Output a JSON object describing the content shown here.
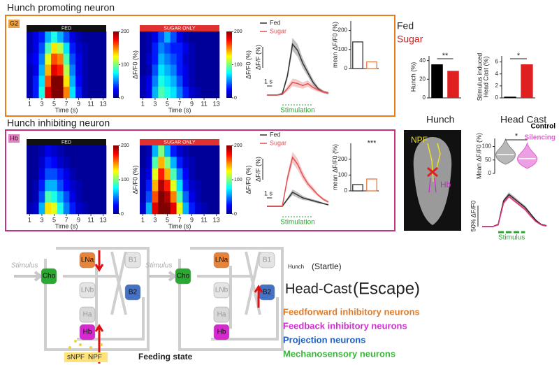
{
  "figure": {
    "titles": [
      "Hunch promoting neuron",
      "Hunch inhibiting neuron"
    ],
    "tags": [
      "G2",
      "Hb"
    ],
    "legend_right": [
      "Fed",
      "Sugar"
    ],
    "image_labels": [
      "Hunch",
      "Head Cast"
    ],
    "brain_labels": [
      "NPF",
      "Hb"
    ]
  },
  "chart_data": [
    {
      "type": "heatmap",
      "title": "FED",
      "header_color": "#111111",
      "x": [
        1,
        2,
        3,
        4,
        5,
        6,
        7,
        8,
        9,
        10,
        11,
        12,
        13
      ],
      "xlim": [
        0.5,
        13.5
      ],
      "xticks": [
        1,
        3,
        5,
        7,
        9,
        11,
        13
      ],
      "xlabel": "Time (s)",
      "zlim": [
        0,
        200
      ],
      "zticks": [
        0,
        100,
        200
      ],
      "zlabel": "ΔF/F0 (%)",
      "values": [
        [
          10,
          20,
          30,
          60,
          80,
          60,
          40,
          20,
          10,
          5,
          5,
          5,
          5
        ],
        [
          10,
          20,
          40,
          90,
          130,
          110,
          70,
          30,
          15,
          10,
          5,
          5,
          5
        ],
        [
          15,
          25,
          50,
          120,
          160,
          150,
          90,
          40,
          20,
          10,
          5,
          5,
          5
        ],
        [
          10,
          20,
          60,
          140,
          180,
          170,
          110,
          50,
          20,
          10,
          5,
          5,
          5
        ],
        [
          10,
          30,
          70,
          160,
          200,
          200,
          130,
          60,
          25,
          10,
          5,
          5,
          5
        ],
        [
          10,
          30,
          80,
          180,
          200,
          200,
          150,
          70,
          30,
          10,
          5,
          5,
          5
        ]
      ]
    },
    {
      "type": "heatmap",
      "title": "SUGAR ONLY",
      "header_color": "#e03030",
      "x": [
        1,
        2,
        3,
        4,
        5,
        6,
        7,
        8,
        9,
        10,
        11,
        12,
        13
      ],
      "xlim": [
        0.5,
        13.5
      ],
      "xticks": [
        1,
        3,
        5,
        7,
        9,
        11,
        13
      ],
      "xlabel": "Time (s)",
      "zlim": [
        0,
        200
      ],
      "zticks": [
        0,
        100,
        200
      ],
      "zlabel": "ΔF/F0 (%)",
      "values": [
        [
          5,
          10,
          20,
          40,
          60,
          40,
          20,
          10,
          5,
          5,
          5,
          5,
          5
        ],
        [
          5,
          10,
          30,
          50,
          40,
          30,
          30,
          20,
          10,
          5,
          5,
          5,
          5
        ],
        [
          5,
          15,
          30,
          60,
          50,
          40,
          30,
          15,
          10,
          5,
          5,
          5,
          5
        ],
        [
          5,
          10,
          40,
          70,
          60,
          50,
          30,
          20,
          10,
          5,
          5,
          5,
          5
        ],
        [
          10,
          20,
          50,
          80,
          70,
          60,
          40,
          20,
          10,
          5,
          5,
          5,
          5
        ],
        [
          10,
          20,
          60,
          90,
          80,
          70,
          50,
          30,
          15,
          10,
          5,
          5,
          5
        ]
      ]
    },
    {
      "type": "line",
      "legend": true,
      "x": [
        0,
        1,
        2,
        3,
        4,
        5,
        6,
        7,
        8,
        9,
        10,
        11,
        12
      ],
      "xlim": [
        0,
        12
      ],
      "ylim": [
        -10,
        100
      ],
      "ylabel": "ΔF/F (%)",
      "scale_x": "1 s",
      "stim_label": "Stimulation",
      "stim_range": [
        3,
        9
      ],
      "series": [
        {
          "name": "Fed",
          "color": "#333333",
          "values": [
            0,
            0,
            0,
            2,
            30,
            80,
            70,
            50,
            35,
            20,
            10,
            5,
            3
          ],
          "errors": [
            1,
            1,
            1,
            2,
            6,
            10,
            10,
            8,
            6,
            5,
            3,
            2,
            2
          ]
        },
        {
          "name": "Sugar",
          "color": "#e05050",
          "values": [
            0,
            0,
            0,
            1,
            10,
            20,
            18,
            15,
            18,
            12,
            8,
            5,
            3
          ],
          "errors": [
            1,
            1,
            1,
            1,
            4,
            6,
            6,
            5,
            5,
            4,
            3,
            2,
            2
          ]
        }
      ]
    },
    {
      "type": "bar",
      "outline": true,
      "categories": [
        null,
        null
      ],
      "values": [
        140,
        35
      ],
      "colors": [
        "#222222",
        "#e07030"
      ],
      "ylim": [
        0,
        250
      ],
      "yticks": [
        0,
        100,
        200
      ],
      "ylabel": [
        "mean ΔF/F0 (%)"
      ]
    },
    {
      "type": "heatmap",
      "title": "FED",
      "header_color": "#111111",
      "x": [
        1,
        2,
        3,
        4,
        5,
        6,
        7,
        8,
        9,
        10,
        11,
        12,
        13
      ],
      "xlim": [
        0.5,
        13.5
      ],
      "xticks": [
        1,
        3,
        5,
        7,
        9,
        11,
        13
      ],
      "xlabel": "Time (s)",
      "zlim": [
        0,
        200
      ],
      "zticks": [
        0,
        100,
        200
      ],
      "zlabel": "ΔF/F0 (%)",
      "values": [
        [
          5,
          5,
          10,
          20,
          15,
          10,
          5,
          5,
          5,
          5,
          5,
          5,
          5
        ],
        [
          5,
          5,
          15,
          30,
          25,
          15,
          10,
          5,
          5,
          5,
          5,
          5,
          5
        ],
        [
          5,
          5,
          20,
          40,
          40,
          30,
          20,
          10,
          5,
          5,
          5,
          5,
          5
        ],
        [
          5,
          10,
          30,
          60,
          60,
          40,
          25,
          15,
          10,
          5,
          5,
          5,
          5
        ],
        [
          5,
          10,
          40,
          90,
          80,
          60,
          40,
          20,
          10,
          5,
          5,
          5,
          5
        ],
        [
          10,
          15,
          60,
          130,
          120,
          80,
          50,
          30,
          15,
          10,
          5,
          5,
          5
        ]
      ]
    },
    {
      "type": "heatmap",
      "title": "SUGAR ONLY",
      "header_color": "#e03030",
      "x": [
        1,
        2,
        3,
        4,
        5,
        6,
        7,
        8,
        9,
        10,
        11,
        12,
        13
      ],
      "xlim": [
        0.5,
        13.5
      ],
      "xticks": [
        1,
        3,
        5,
        7,
        9,
        11,
        13
      ],
      "xlabel": "Time (s)",
      "zlim": [
        0,
        200
      ],
      "zticks": [
        0,
        100,
        200
      ],
      "zlabel": "ΔF/F0 (%)",
      "values": [
        [
          5,
          10,
          60,
          100,
          60,
          30,
          15,
          10,
          5,
          5,
          5,
          5,
          5
        ],
        [
          5,
          15,
          90,
          140,
          100,
          60,
          30,
          15,
          10,
          5,
          5,
          5,
          5
        ],
        [
          10,
          20,
          120,
          170,
          140,
          90,
          50,
          25,
          10,
          5,
          5,
          5,
          5
        ],
        [
          10,
          30,
          140,
          190,
          170,
          120,
          70,
          30,
          15,
          10,
          5,
          5,
          5
        ],
        [
          10,
          40,
          160,
          200,
          190,
          150,
          90,
          45,
          20,
          10,
          5,
          5,
          5
        ],
        [
          15,
          60,
          180,
          200,
          200,
          180,
          120,
          60,
          30,
          15,
          10,
          5,
          5
        ]
      ]
    },
    {
      "type": "line",
      "legend": true,
      "x": [
        0,
        1,
        2,
        3,
        4,
        5,
        6,
        7,
        8,
        9,
        10,
        11,
        12
      ],
      "xlim": [
        0,
        12
      ],
      "ylim": [
        -5,
        45
      ],
      "ylabel": "ΔF/F (%)",
      "scale_x": "1 s",
      "stim_label": "Stimulation",
      "stim_range": [
        3,
        9
      ],
      "series": [
        {
          "name": "Fed",
          "color": "#333333",
          "values": [
            0,
            0,
            0,
            0,
            5,
            10,
            8,
            6,
            5,
            4,
            3,
            2,
            1
          ],
          "errors": [
            0.5,
            0.5,
            0.5,
            0.5,
            1,
            2,
            2,
            1.5,
            1,
            1,
            1,
            0.5,
            0.5
          ]
        },
        {
          "name": "Sugar",
          "color": "#e05050",
          "values": [
            0,
            0,
            0,
            0,
            20,
            35,
            30,
            22,
            16,
            12,
            8,
            5,
            3
          ],
          "errors": [
            0.5,
            0.5,
            0.5,
            0.5,
            3,
            4,
            4,
            3,
            2,
            2,
            1,
            1,
            1
          ]
        }
      ]
    },
    {
      "type": "bar",
      "outline": true,
      "categories": [
        null,
        null
      ],
      "values": [
        40,
        75
      ],
      "colors": [
        "#222222",
        "#e07030"
      ],
      "ylim": [
        0,
        300
      ],
      "yticks": [
        0,
        100,
        200
      ],
      "ylabel": [
        "mean ΔF/F0 (%)"
      ],
      "sig": "***"
    },
    {
      "type": "bar",
      "outline": false,
      "categories": [
        null,
        null
      ],
      "values": [
        36,
        29
      ],
      "colors": [
        "#000000",
        "#e02020"
      ],
      "ylim": [
        0,
        45
      ],
      "yticks": [
        0,
        20,
        40
      ],
      "ylabel": [
        "Hunch (%)"
      ],
      "sig": "**"
    },
    {
      "type": "bar",
      "outline": false,
      "categories": [
        null,
        null
      ],
      "values": [
        0.2,
        5.6
      ],
      "colors": [
        "#000000",
        "#e02020"
      ],
      "ylim": [
        0,
        7
      ],
      "yticks": [
        0,
        2,
        4,
        6
      ],
      "ylabel": [
        "Stimulus induced",
        "Head Cast (%)"
      ],
      "sig": "*"
    },
    {
      "type": "violin",
      "categories": [
        null,
        null
      ],
      "series": [
        {
          "name": "Control",
          "color": "#888888"
        },
        {
          "name": "Silencing",
          "color": "#e060d0"
        }
      ],
      "values": [
        70,
        55
      ],
      "ylim": [
        0,
        130
      ],
      "yticks": [
        0,
        50,
        100
      ],
      "ylabel": [
        "Mean ΔF/F0 (%)"
      ],
      "sig": "*"
    },
    {
      "type": "line",
      "legend": false,
      "x": [
        0,
        1,
        2,
        3,
        4,
        5,
        6,
        7,
        8,
        9,
        10,
        11,
        12
      ],
      "xlim": [
        0,
        12
      ],
      "ylim": [
        -5,
        85
      ],
      "ylabel": "50% ΔF/F0",
      "stim_label": "Stimulus",
      "stim_range": [
        3,
        8
      ],
      "series": [
        {
          "name": "Control",
          "color": "#222222",
          "values": [
            0,
            0,
            0,
            5,
            60,
            75,
            65,
            55,
            45,
            30,
            15,
            5,
            2
          ],
          "errors": [
            1,
            1,
            1,
            2,
            4,
            5,
            5,
            4,
            4,
            3,
            2,
            1,
            1
          ]
        },
        {
          "name": "Silencing",
          "color": "#e0307a",
          "values": [
            0,
            0,
            0,
            4,
            55,
            70,
            60,
            50,
            40,
            25,
            12,
            4,
            1
          ],
          "errors": [
            1,
            1,
            1,
            2,
            3,
            3,
            3,
            3,
            3,
            2,
            2,
            1,
            1
          ]
        }
      ]
    }
  ],
  "diagrams": [
    {
      "stimulus": "Stimulus",
      "nodes": [
        {
          "label": "Cho",
          "color": "#2aa830"
        },
        {
          "label": "LNa",
          "color": "#e8833a"
        },
        {
          "label": "LNb",
          "color": "#e4e4e4"
        },
        {
          "label": "B1",
          "color": "#e4e4e4"
        },
        {
          "label": "B2",
          "color": "#4472c4"
        },
        {
          "label": "Ha",
          "color": "#d8d8d8"
        },
        {
          "label": "Hb",
          "color": "#d62ad0"
        }
      ],
      "modulators": [
        "sNPF",
        "NPF"
      ],
      "state": "Feeding state"
    },
    {
      "stimulus": "Stimulus",
      "nodes": [
        {
          "label": "Cho",
          "color": "#2aa830"
        },
        {
          "label": "LNa",
          "color": "#e8833a"
        },
        {
          "label": "LNb",
          "color": "#e4e4e4"
        },
        {
          "label": "B1",
          "color": "#e4e4e4"
        },
        {
          "label": "B2",
          "color": "#4472c4"
        },
        {
          "label": "Ha",
          "color": "#d8d8d8"
        },
        {
          "label": "Hb",
          "color": "#d62ad0"
        }
      ]
    }
  ],
  "behaviors": [
    {
      "name": "Hunch",
      "kind": "(Startle)"
    },
    {
      "name": "Head-Cast",
      "kind": "(Escape)"
    }
  ],
  "legend": [
    {
      "label": "Feedforward inhibitory neurons",
      "color": "#e07b2a"
    },
    {
      "label": "Feedback inhibitory neurons",
      "color": "#d12fd1"
    },
    {
      "label": "Projection neurons",
      "color": "#2060c0"
    },
    {
      "label": "Mechanosensory neurons",
      "color": "#3cb53c"
    }
  ]
}
